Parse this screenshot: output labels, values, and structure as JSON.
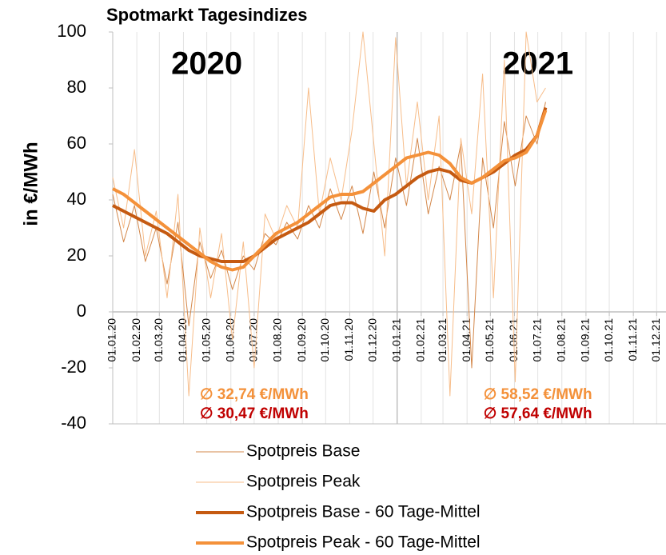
{
  "chart_data": {
    "type": "line",
    "title": "Spotmarkt Tagesindizes",
    "y_label": "in €/MWh",
    "x": [
      0,
      14,
      28,
      42,
      56,
      70,
      84,
      98,
      112,
      126,
      140,
      154,
      168,
      182,
      196,
      210,
      224,
      238,
      252,
      266,
      280,
      294,
      308,
      322,
      336,
      350,
      364,
      378,
      392,
      406,
      420,
      434,
      448,
      462,
      476,
      490,
      504,
      518,
      532,
      546,
      557
    ],
    "series": [
      {
        "name": "Spotpreis Base",
        "color": "#d3874a",
        "width": 1,
        "values": [
          42,
          25,
          38,
          18,
          30,
          10,
          32,
          -5,
          25,
          12,
          22,
          8,
          20,
          15,
          28,
          24,
          32,
          26,
          38,
          30,
          44,
          33,
          45,
          28,
          50,
          30,
          55,
          38,
          62,
          35,
          52,
          40,
          60,
          -20,
          55,
          30,
          68,
          45,
          70,
          60,
          75
        ]
      },
      {
        "name": "Spotpreis Peak",
        "color": "#f7bd8a",
        "width": 1,
        "values": [
          48,
          30,
          58,
          20,
          36,
          5,
          42,
          -30,
          30,
          5,
          28,
          -10,
          25,
          -20,
          35,
          26,
          38,
          30,
          80,
          35,
          55,
          40,
          65,
          100,
          60,
          20,
          98,
          45,
          75,
          40,
          70,
          -30,
          62,
          35,
          85,
          5,
          90,
          -25,
          100,
          75,
          80
        ]
      },
      {
        "name": "Spotpreis Base - 60 Tage-Mittel",
        "color": "#c55a11",
        "width": 4,
        "values": [
          38,
          36,
          34,
          32,
          30,
          28,
          25,
          22,
          20,
          19,
          18,
          18,
          18,
          20,
          23,
          26,
          28,
          30,
          32,
          35,
          38,
          39,
          39,
          37,
          36,
          40,
          42,
          45,
          48,
          50,
          51,
          50,
          47,
          46,
          48,
          50,
          53,
          56,
          58,
          63,
          73
        ]
      },
      {
        "name": "Spotpreis Peak - 60 Tage-Mittel",
        "color": "#f4913a",
        "width": 4,
        "values": [
          44,
          42,
          39,
          36,
          33,
          30,
          27,
          24,
          21,
          18,
          16,
          15,
          16,
          20,
          24,
          28,
          30,
          32,
          35,
          38,
          41,
          42,
          42,
          43,
          46,
          49,
          52,
          55,
          56,
          57,
          56,
          53,
          48,
          46,
          48,
          51,
          54,
          55,
          57,
          63,
          72
        ]
      }
    ],
    "xlim": [
      0,
      712
    ],
    "xticks": [
      {
        "value": 0,
        "label": "01.01.20"
      },
      {
        "value": 31,
        "label": "01.02.20"
      },
      {
        "value": 60,
        "label": "01.03.20"
      },
      {
        "value": 91,
        "label": "01.04.20"
      },
      {
        "value": 121,
        "label": "01.05.20"
      },
      {
        "value": 152,
        "label": "01.06.20"
      },
      {
        "value": 182,
        "label": "01.07.20"
      },
      {
        "value": 213,
        "label": "01.08.20"
      },
      {
        "value": 244,
        "label": "01.09.20"
      },
      {
        "value": 274,
        "label": "01.10.20"
      },
      {
        "value": 305,
        "label": "01.11.20"
      },
      {
        "value": 335,
        "label": "01.12.20"
      },
      {
        "value": 366,
        "label": "01.01.21"
      },
      {
        "value": 397,
        "label": "01.02.21"
      },
      {
        "value": 425,
        "label": "01.03.21"
      },
      {
        "value": 456,
        "label": "01.04.21"
      },
      {
        "value": 486,
        "label": "01.05.21"
      },
      {
        "value": 517,
        "label": "01.06.21"
      },
      {
        "value": 547,
        "label": "01.07.21"
      },
      {
        "value": 578,
        "label": "01.08.21"
      },
      {
        "value": 609,
        "label": "01.09.21"
      },
      {
        "value": 639,
        "label": "01.10.21"
      },
      {
        "value": 670,
        "label": "01.11.21"
      },
      {
        "value": 700,
        "label": "01.12.21"
      }
    ],
    "ylim": [
      -40,
      100
    ],
    "yticks": [
      -40,
      -20,
      0,
      20,
      40,
      60,
      80,
      100
    ],
    "grid": true,
    "year_labels": [
      {
        "text": "2020",
        "x": 121
      },
      {
        "text": "2021",
        "x": 547
      }
    ],
    "divider_x": 366,
    "annotations": [
      {
        "text": "∅ 32,74 €/MWh",
        "x": 182,
        "row": 0,
        "color": "#f4913a"
      },
      {
        "text": "∅ 30,47 €/MWh",
        "x": 182,
        "row": 1,
        "color": "#c00000"
      },
      {
        "text": "∅ 58,52 €/MWh",
        "x": 547,
        "row": 0,
        "color": "#f4913a"
      },
      {
        "text": "∅ 57,64 €/MWh",
        "x": 547,
        "row": 1,
        "color": "#c00000"
      }
    ]
  }
}
